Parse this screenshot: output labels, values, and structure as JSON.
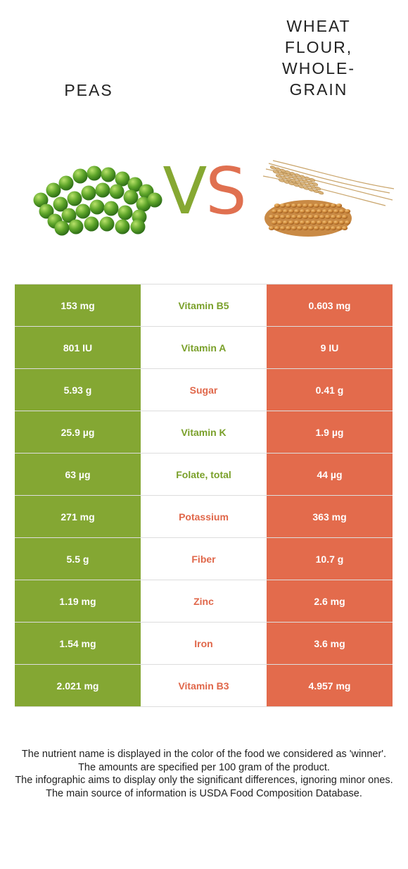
{
  "header": {
    "left_food": "Peas",
    "right_food": "Wheat flour, whole-grain",
    "vs_v": "V",
    "vs_s": "S"
  },
  "colors": {
    "left_accent": "#84a733",
    "right_accent": "#e36b4c"
  },
  "images": {
    "left": "peas-image",
    "right": "wheat-image"
  },
  "rows": [
    {
      "left": "153 mg",
      "nutrient": "Vitamin B5",
      "right": "0.603 mg",
      "winner": "left"
    },
    {
      "left": "801 IU",
      "nutrient": "Vitamin A",
      "right": "9 IU",
      "winner": "left"
    },
    {
      "left": "5.93 g",
      "nutrient": "Sugar",
      "right": "0.41 g",
      "winner": "right"
    },
    {
      "left": "25.9 µg",
      "nutrient": "Vitamin K",
      "right": "1.9 µg",
      "winner": "left"
    },
    {
      "left": "63 µg",
      "nutrient": "Folate, total",
      "right": "44 µg",
      "winner": "left"
    },
    {
      "left": "271 mg",
      "nutrient": "Potassium",
      "right": "363 mg",
      "winner": "right"
    },
    {
      "left": "5.5 g",
      "nutrient": "Fiber",
      "right": "10.7 g",
      "winner": "right"
    },
    {
      "left": "1.19 mg",
      "nutrient": "Zinc",
      "right": "2.6 mg",
      "winner": "right"
    },
    {
      "left": "1.54 mg",
      "nutrient": "Iron",
      "right": "3.6 mg",
      "winner": "right"
    },
    {
      "left": "2.021 mg",
      "nutrient": "Vitamin B3",
      "right": "4.957 mg",
      "winner": "right"
    }
  ],
  "footnote": {
    "line1": "The nutrient name is displayed in the color of the food we considered as 'winner'.",
    "line2": "The amounts are specified per 100 gram of the product.",
    "line3": "The infographic aims to display only the significant differences, ignoring minor ones.",
    "line4": "The main source of information is USDA Food Composition Database."
  }
}
